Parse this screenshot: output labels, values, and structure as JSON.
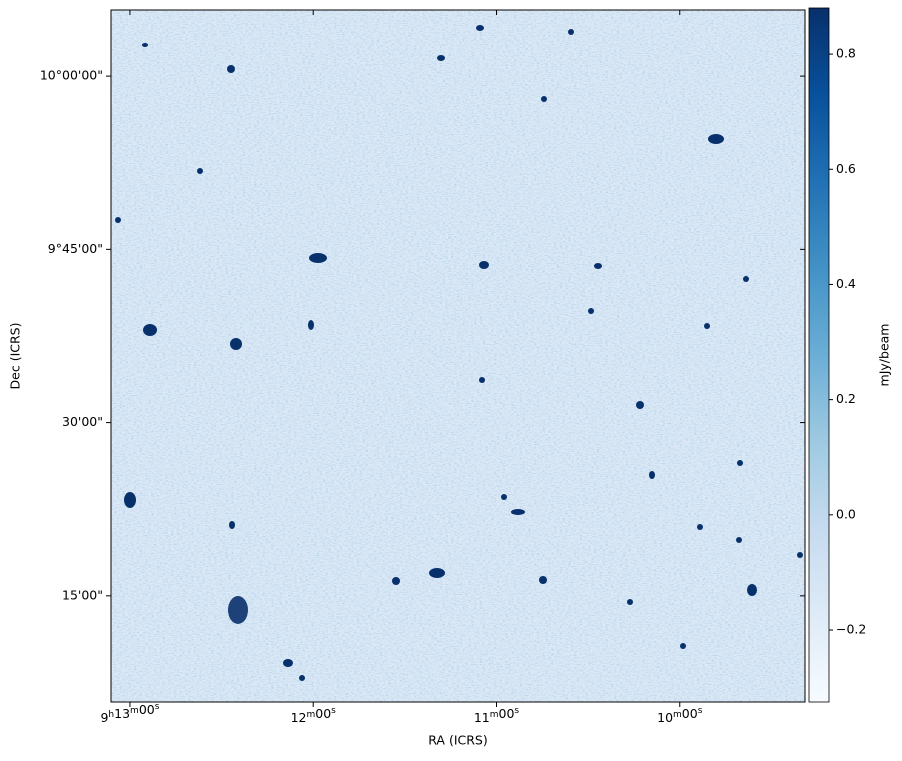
{
  "chart_data": {
    "type": "image",
    "xlabel": "RA (ICRS)",
    "ylabel": "Dec (ICRS)",
    "xlim": [
      33186.2,
      32959
    ],
    "ylim": [
      9.0968,
      10.0954
    ],
    "xticks": [
      {
        "value": 33180,
        "label": "9h13m00s"
      },
      {
        "value": 33120,
        "label": "12m00s"
      },
      {
        "value": 33060,
        "label": "11m00s"
      },
      {
        "value": 33000,
        "label": "10m00s"
      }
    ],
    "yticks": [
      {
        "value": 10.0,
        "label": "10°00'00\""
      },
      {
        "value": 9.75,
        "label": "9°45'00\""
      },
      {
        "value": 9.5,
        "label": "30'00\""
      },
      {
        "value": 9.25,
        "label": "15'00\""
      }
    ],
    "colormap": "Blues",
    "colorbar": {
      "label": "mJy/beam",
      "clim": [
        -0.325,
        0.88
      ],
      "ticks": [
        {
          "value": -0.2,
          "label": "−0.2"
        },
        {
          "value": 0,
          "label": "0.0"
        },
        0.2,
        0.4,
        0.6,
        0.8
      ]
    }
  }
}
